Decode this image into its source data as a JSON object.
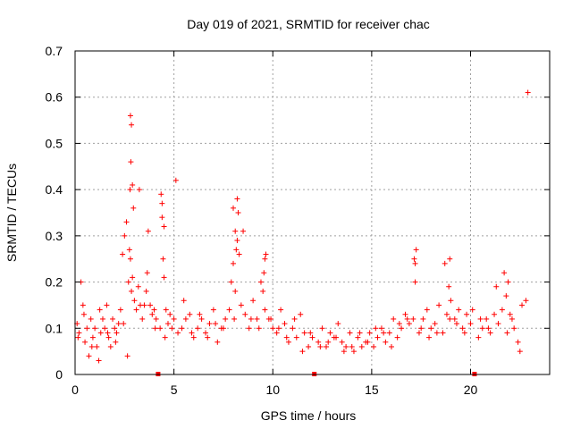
{
  "chart_data": {
    "type": "scatter",
    "title": "Day 019 of 2021, SRMTID for receiver chac",
    "xlabel": "GPS time / hours",
    "ylabel": "SRMTID / TECUs",
    "xlim": [
      0,
      24
    ],
    "ylim": [
      0,
      0.7
    ],
    "xticks": [
      0,
      5,
      10,
      15,
      20
    ],
    "xtick_labels": [
      "0",
      "5",
      "10",
      "15",
      "20"
    ],
    "yticks": [
      0,
      0.1,
      0.2,
      0.3,
      0.4,
      0.5,
      0.6,
      0.7
    ],
    "ytick_labels": [
      "0",
      "0.1",
      "0.2",
      "0.3",
      "0.4",
      "0.5",
      "0.6",
      "0.7"
    ],
    "grid": true,
    "marker": "plus",
    "color": "#ff0000",
    "gap_markers_x": [
      4.2,
      12.1,
      20.2
    ],
    "points_x": [
      0.1,
      0.2,
      0.3,
      0.4,
      0.5,
      0.6,
      0.7,
      0.8,
      0.9,
      1.0,
      1.1,
      1.2,
      1.3,
      1.4,
      1.5,
      1.6,
      1.7,
      1.8,
      1.9,
      2.0,
      2.1,
      2.2,
      2.3,
      2.4,
      2.5,
      2.6,
      2.7,
      2.75,
      2.8,
      2.85,
      2.9,
      3.0,
      3.1,
      3.2,
      3.3,
      3.4,
      3.5,
      3.6,
      3.7,
      3.8,
      3.9,
      4.0,
      4.1,
      4.3,
      4.4,
      4.45,
      4.5,
      4.6,
      4.7,
      4.8,
      4.9,
      5.0,
      5.2,
      5.4,
      5.6,
      5.8,
      6.0,
      6.2,
      6.4,
      6.6,
      6.8,
      7.0,
      7.2,
      7.4,
      7.6,
      7.8,
      7.9,
      8.0,
      8.1,
      8.2,
      8.3,
      8.4,
      8.6,
      8.8,
      9.0,
      9.2,
      9.4,
      9.5,
      9.6,
      9.8,
      10.0,
      10.2,
      10.4,
      10.6,
      10.8,
      11.0,
      11.2,
      11.4,
      11.6,
      11.8,
      12.0,
      12.3,
      12.5,
      12.7,
      12.9,
      13.1,
      13.3,
      13.5,
      13.7,
      13.9,
      14.1,
      14.3,
      14.5,
      14.7,
      14.9,
      15.1,
      15.3,
      15.5,
      15.7,
      15.9,
      16.1,
      16.3,
      16.5,
      16.7,
      16.9,
      17.1,
      17.2,
      17.4,
      17.6,
      17.8,
      18.0,
      18.2,
      18.4,
      18.6,
      18.8,
      18.9,
      19.0,
      19.2,
      19.4,
      19.6,
      19.8,
      20.0,
      20.4,
      20.6,
      20.8,
      21.0,
      21.2,
      21.4,
      21.6,
      21.8,
      21.9,
      22.0,
      22.2,
      22.4,
      22.6,
      22.8,
      0.15,
      0.45,
      0.85,
      1.25,
      1.65,
      2.05,
      2.45,
      2.65,
      2.95,
      3.25,
      3.65,
      4.05,
      4.55,
      5.1,
      5.5,
      5.9,
      6.3,
      6.7,
      7.1,
      7.5,
      8.05,
      8.25,
      8.5,
      8.9,
      9.3,
      9.55,
      9.9,
      10.3,
      10.7,
      11.1,
      11.5,
      11.9,
      12.4,
      12.8,
      13.2,
      13.6,
      14.0,
      14.4,
      14.8,
      15.2,
      15.6,
      16.0,
      16.4,
      16.8,
      17.15,
      17.5,
      17.9,
      18.3,
      18.7,
      18.95,
      19.3,
      19.7,
      20.1,
      20.5,
      20.9,
      21.3,
      21.7,
      21.85,
      22.1,
      22.5,
      22.9,
      2.8,
      2.82,
      2.85,
      2.78,
      2.9,
      4.4,
      4.5,
      4.35,
      8.0,
      8.1,
      8.2,
      8.15,
      9.6,
      9.65,
      17.2,
      17.25,
      18.95,
      19.0
    ],
    "points_y": [
      0.11,
      0.09,
      0.2,
      0.15,
      0.07,
      0.1,
      0.04,
      0.12,
      0.08,
      0.1,
      0.06,
      0.03,
      0.09,
      0.12,
      0.1,
      0.15,
      0.08,
      0.06,
      0.12,
      0.1,
      0.09,
      0.11,
      0.14,
      0.26,
      0.3,
      0.33,
      0.2,
      0.27,
      0.25,
      0.18,
      0.21,
      0.16,
      0.14,
      0.19,
      0.15,
      0.12,
      0.15,
      0.18,
      0.31,
      0.15,
      0.13,
      0.14,
      0.12,
      0.1,
      0.34,
      0.25,
      0.21,
      0.14,
      0.11,
      0.13,
      0.1,
      0.12,
      0.09,
      0.1,
      0.12,
      0.13,
      0.08,
      0.1,
      0.12,
      0.09,
      0.11,
      0.14,
      0.07,
      0.1,
      0.12,
      0.14,
      0.2,
      0.24,
      0.18,
      0.29,
      0.26,
      0.15,
      0.13,
      0.1,
      0.16,
      0.12,
      0.2,
      0.18,
      0.14,
      0.12,
      0.1,
      0.09,
      0.14,
      0.11,
      0.07,
      0.1,
      0.08,
      0.13,
      0.09,
      0.06,
      0.08,
      0.07,
      0.1,
      0.06,
      0.09,
      0.08,
      0.11,
      0.07,
      0.06,
      0.09,
      0.05,
      0.08,
      0.06,
      0.07,
      0.09,
      0.06,
      0.08,
      0.1,
      0.07,
      0.09,
      0.12,
      0.08,
      0.1,
      0.13,
      0.11,
      0.12,
      0.2,
      0.09,
      0.12,
      0.14,
      0.1,
      0.11,
      0.15,
      0.09,
      0.13,
      0.19,
      0.16,
      0.12,
      0.14,
      0.1,
      0.13,
      0.11,
      0.08,
      0.1,
      0.12,
      0.09,
      0.13,
      0.11,
      0.14,
      0.17,
      0.2,
      0.13,
      0.1,
      0.07,
      0.15,
      0.16,
      0.08,
      0.13,
      0.06,
      0.14,
      0.09,
      0.07,
      0.11,
      0.04,
      0.36,
      0.4,
      0.22,
      0.1,
      0.08,
      0.42,
      0.16,
      0.09,
      0.13,
      0.08,
      0.11,
      0.1,
      0.12,
      0.35,
      0.31,
      0.12,
      0.1,
      0.22,
      0.12,
      0.1,
      0.08,
      0.12,
      0.05,
      0.09,
      0.06,
      0.07,
      0.08,
      0.05,
      0.06,
      0.09,
      0.07,
      0.1,
      0.09,
      0.06,
      0.11,
      0.12,
      0.25,
      0.1,
      0.08,
      0.09,
      0.24,
      0.12,
      0.11,
      0.09,
      0.14,
      0.12,
      0.1,
      0.19,
      0.22,
      0.09,
      0.12,
      0.05,
      0.61,
      0.56,
      0.46,
      0.54,
      0.4,
      0.41,
      0.37,
      0.32,
      0.39,
      0.36,
      0.31,
      0.38,
      0.27,
      0.25,
      0.26,
      0.24,
      0.27,
      0.25
    ]
  }
}
